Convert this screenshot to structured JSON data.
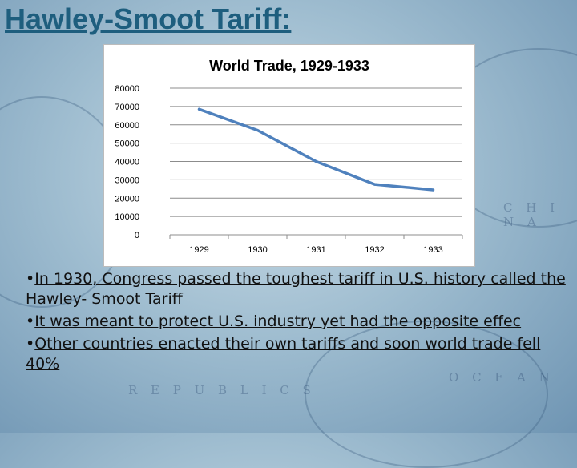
{
  "slide": {
    "title": "Hawley-Smoot Tariff:",
    "background_labels": [
      "C H I N A",
      "O C E A N",
      "R E P U B L I C S"
    ],
    "bullets": [
      "In 1930, Congress passed the toughest tariff in U.S. history called the Hawley- Smoot Tariff",
      "It was meant to protect U.S. industry yet had the opposite effec",
      "Other countries enacted their own tariffs and soon world trade fell 40%"
    ],
    "bullet_marker": "•"
  },
  "chart_data": {
    "type": "line",
    "title": "World Trade, 1929-1933",
    "xlabel": "",
    "ylabel": "",
    "categories": [
      "1929",
      "1930",
      "1931",
      "1932",
      "1933"
    ],
    "series": [
      {
        "values": [
          68500,
          57000,
          40000,
          27500,
          24500
        ]
      }
    ],
    "ylim": [
      0,
      80000
    ],
    "yticks": [
      0,
      10000,
      20000,
      30000,
      40000,
      50000,
      60000,
      70000,
      80000
    ],
    "grid": true,
    "legend": "none",
    "colors": {
      "line": "#4f81bd",
      "grid": "#8c8c8c"
    }
  }
}
